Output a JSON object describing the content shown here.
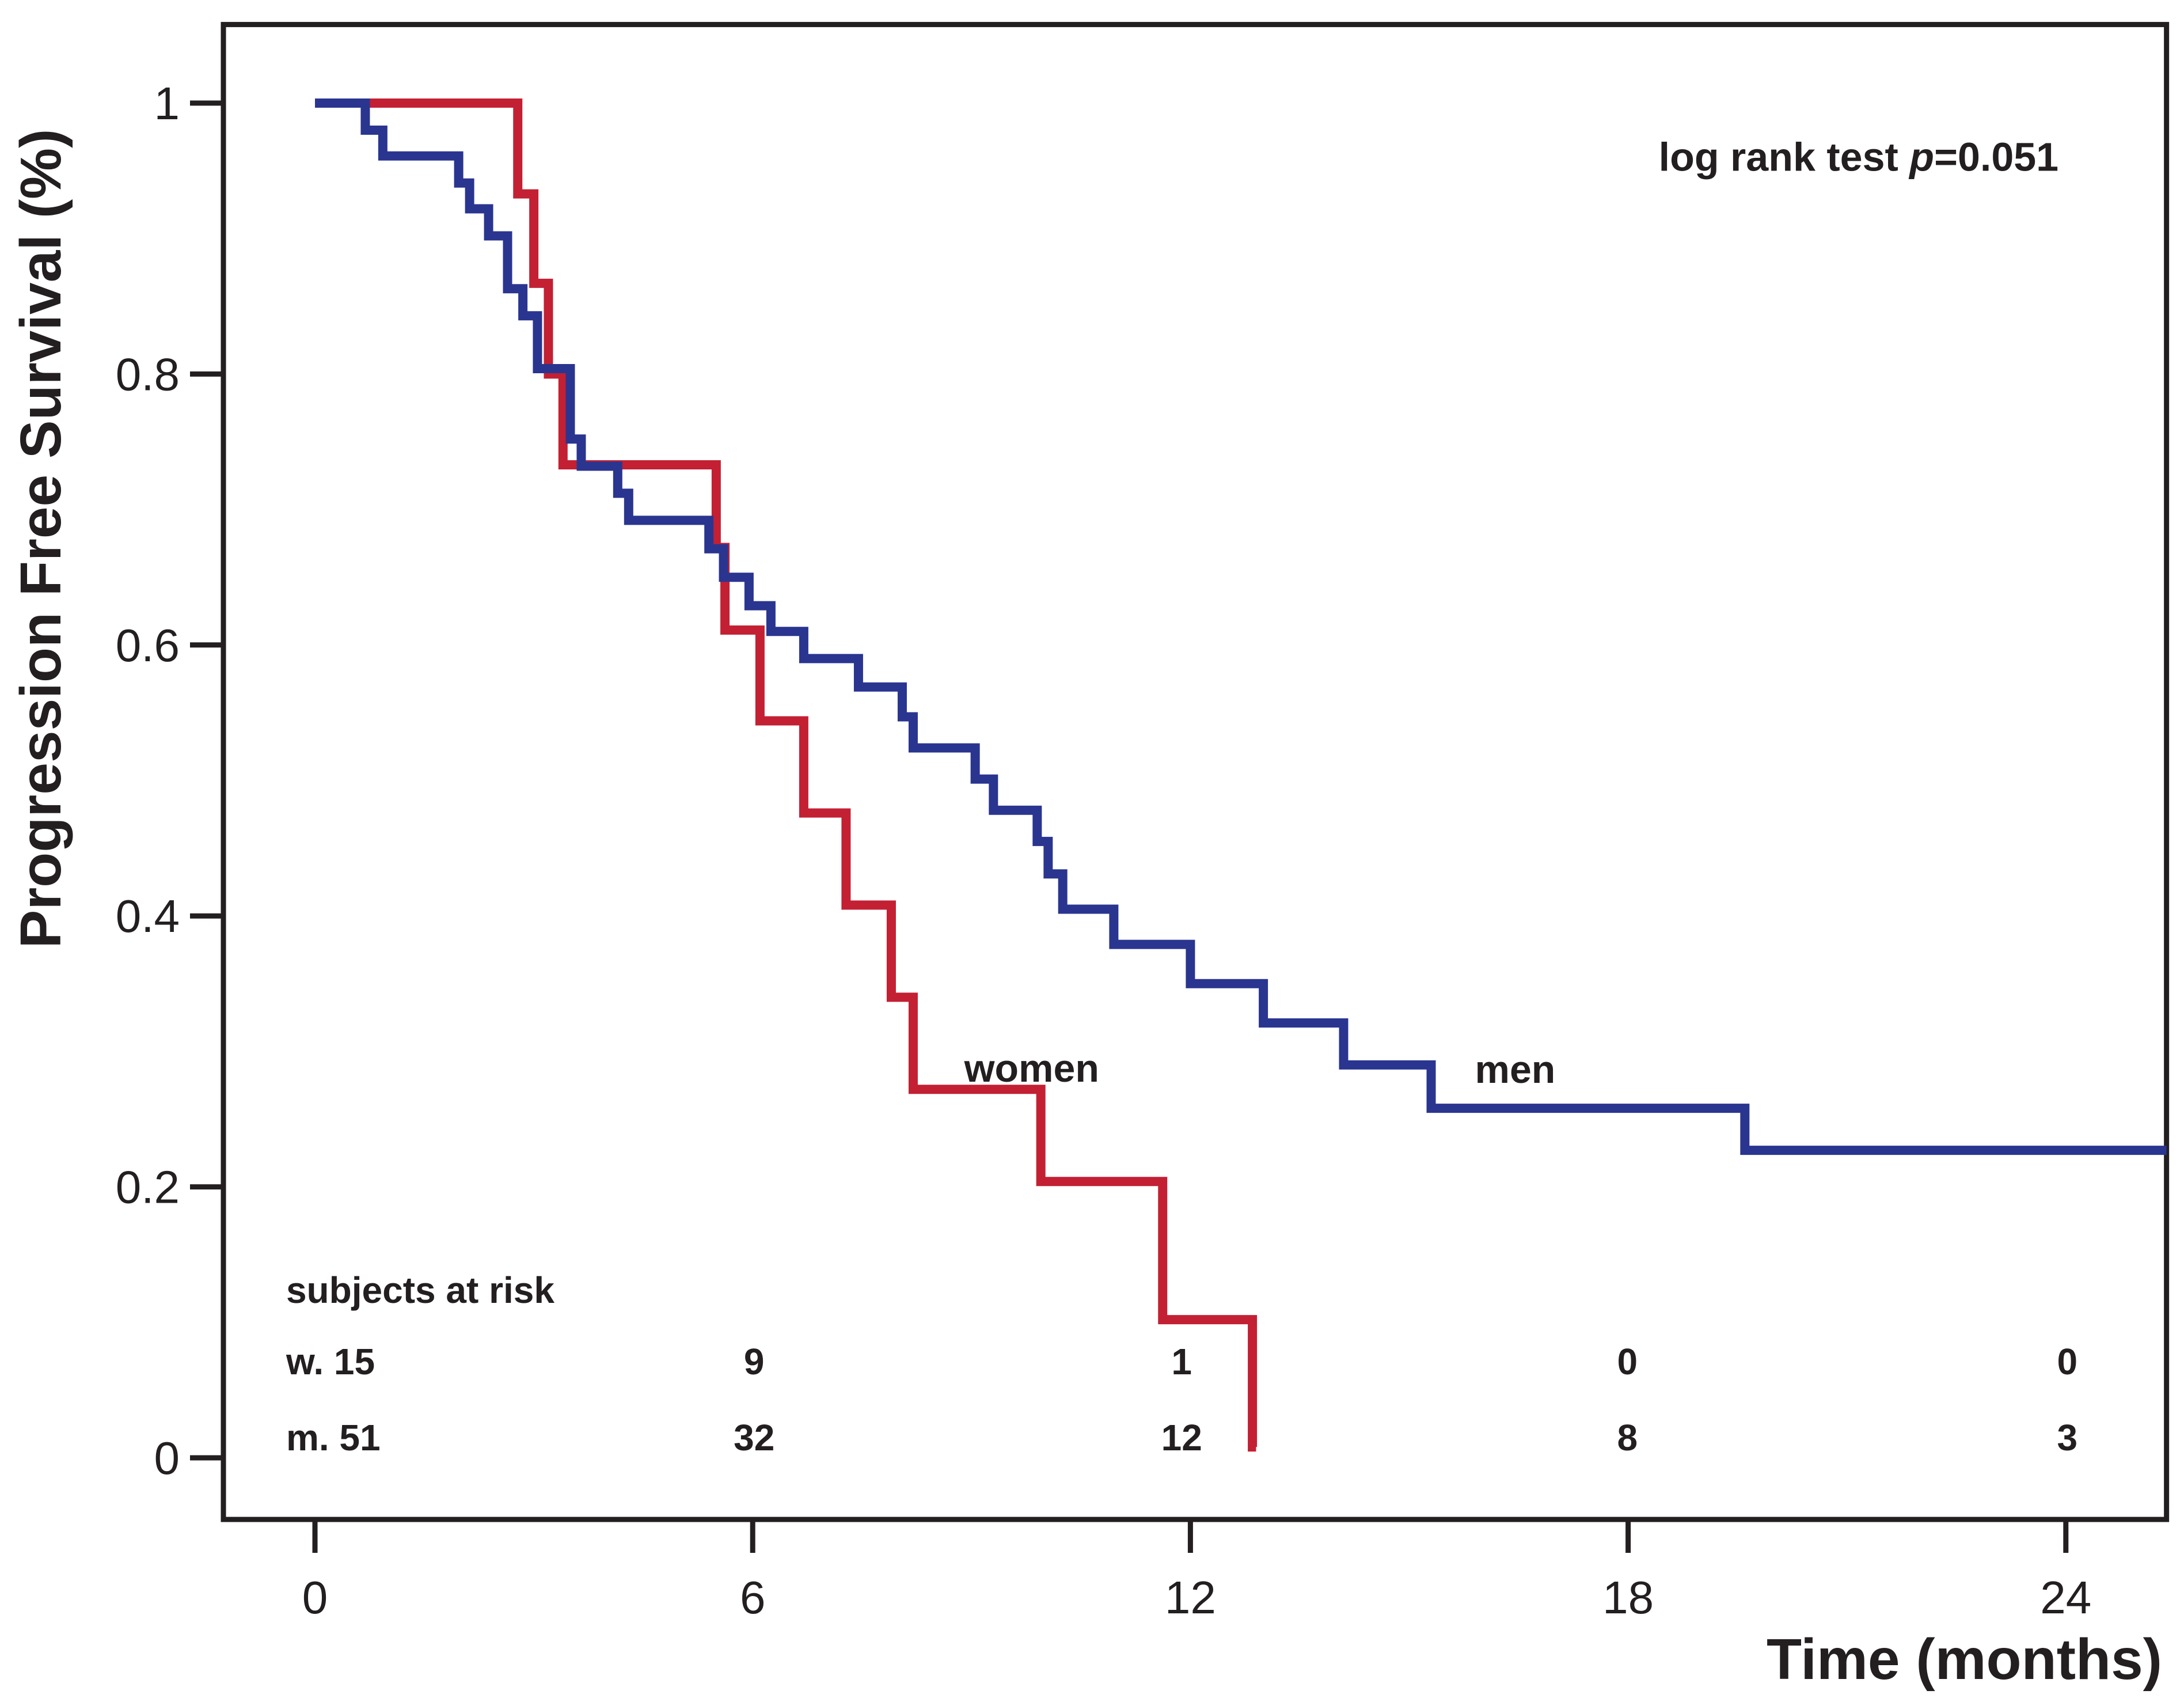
{
  "figure": {
    "background": "#ffffff"
  },
  "chart_data": {
    "type": "line",
    "subtype": "kaplan_meier_step",
    "title": "",
    "xlabel": "Time (months)",
    "ylabel": "Progression Free Survival (%)",
    "grid": false,
    "legend_position": "inline-labels",
    "x_range": [
      -1.255,
      25.38
    ],
    "y_range": [
      -0.0455,
      1.058
    ],
    "x_ticks": [
      {
        "value": 0,
        "label": "0"
      },
      {
        "value": 6,
        "label": "6"
      },
      {
        "value": 12,
        "label": "12"
      },
      {
        "value": 18,
        "label": "18"
      },
      {
        "value": 24,
        "label": "24"
      }
    ],
    "y_ticks": [
      {
        "value": 1.0,
        "label": "1"
      },
      {
        "value": 0.8,
        "label": "0.8"
      },
      {
        "value": 0.6,
        "label": "0.6"
      },
      {
        "value": 0.4,
        "label": "0.4"
      },
      {
        "value": 0.2,
        "label": "0.2"
      },
      {
        "value": 0.0,
        "label": "0"
      }
    ],
    "colors": {
      "women": "#c32033",
      "men": "#2a3590",
      "axis": "#231f20",
      "text": "#231f20"
    },
    "annotation": {
      "prefix": "log rank test ",
      "p_symbol": "p",
      "p_value": "=0.051",
      "x": 23.9,
      "y": 0.95,
      "anchor": "end"
    },
    "series": [
      {
        "name": "women",
        "color_key": "women",
        "n_at_start": 15,
        "steps": [
          [
            0,
            1.0
          ],
          [
            2.78,
            0.933
          ],
          [
            3.0,
            0.867
          ],
          [
            3.2,
            0.8
          ],
          [
            3.4,
            0.733
          ],
          [
            5.5,
            0.672
          ],
          [
            5.62,
            0.611
          ],
          [
            6.1,
            0.544
          ],
          [
            6.7,
            0.476
          ],
          [
            7.28,
            0.408
          ],
          [
            7.9,
            0.34
          ],
          [
            8.2,
            0.272
          ],
          [
            9.95,
            0.204
          ],
          [
            11.62,
            0.102
          ],
          [
            12.85,
            0.008
          ]
        ],
        "end_time": 12.9
      },
      {
        "name": "men",
        "color_key": "men",
        "n_at_start": 51,
        "steps": [
          [
            0,
            1.0
          ],
          [
            0.69,
            0.98
          ],
          [
            0.93,
            0.961
          ],
          [
            1.97,
            0.941
          ],
          [
            2.12,
            0.922
          ],
          [
            2.38,
            0.902
          ],
          [
            2.64,
            0.863
          ],
          [
            2.85,
            0.843
          ],
          [
            3.05,
            0.804
          ],
          [
            3.5,
            0.752
          ],
          [
            3.65,
            0.732
          ],
          [
            4.15,
            0.712
          ],
          [
            4.3,
            0.692
          ],
          [
            5.4,
            0.671
          ],
          [
            5.6,
            0.65
          ],
          [
            5.95,
            0.629
          ],
          [
            6.25,
            0.61
          ],
          [
            6.7,
            0.59
          ],
          [
            7.45,
            0.569
          ],
          [
            8.05,
            0.547
          ],
          [
            8.2,
            0.524
          ],
          [
            9.05,
            0.501
          ],
          [
            9.3,
            0.478
          ],
          [
            9.9,
            0.455
          ],
          [
            10.05,
            0.431
          ],
          [
            10.25,
            0.405
          ],
          [
            10.95,
            0.379
          ],
          [
            12.0,
            0.35
          ],
          [
            13.0,
            0.321
          ],
          [
            14.1,
            0.29
          ],
          [
            15.3,
            0.258
          ],
          [
            19.6,
            0.227
          ]
        ],
        "end_time": 25.38
      }
    ],
    "series_labels": [
      {
        "text": "women",
        "x": 8.9,
        "y": 0.2777,
        "anchor": "start",
        "color_key": "text"
      },
      {
        "text": "men",
        "x": 15.9,
        "y": 0.2768,
        "anchor": "start",
        "color_key": "text"
      }
    ],
    "risk_table": {
      "header": "subjects at risk",
      "header_x": -0.395,
      "header_y": 0.1144,
      "label_x": -0.395,
      "column_times": [
        6.02,
        11.88,
        17.99,
        24.02
      ],
      "rows": [
        {
          "label": "w. 15",
          "y": 0.0617,
          "values": [
            "9",
            "1",
            "0",
            "0"
          ]
        },
        {
          "label": "m. 51",
          "y": 0.0055,
          "values": [
            "32",
            "12",
            "8",
            "3"
          ]
        }
      ]
    }
  }
}
